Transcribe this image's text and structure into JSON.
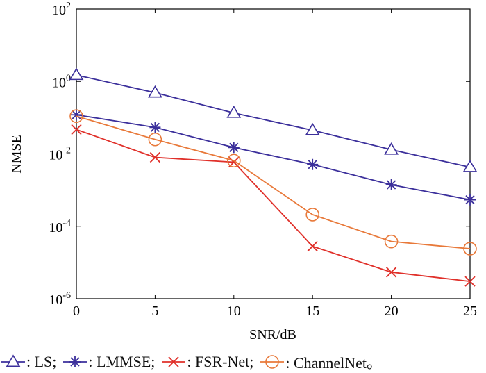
{
  "chart_data": {
    "type": "line",
    "title": "",
    "xlabel": "SNR/dB",
    "ylabel": "NMSE",
    "yscale": "log",
    "xlim": [
      0,
      25
    ],
    "ylim": [
      1e-06,
      100
    ],
    "x": [
      0,
      5,
      10,
      15,
      20,
      25
    ],
    "x_ticks": [
      "0",
      "5",
      "10",
      "15",
      "20",
      "25"
    ],
    "y_ticks": [
      {
        "base": "10",
        "exp": "2"
      },
      {
        "base": "10",
        "exp": "0"
      },
      {
        "base": "10",
        "exp": "-2"
      },
      {
        "base": "10",
        "exp": "-4"
      },
      {
        "base": "10",
        "exp": "-6"
      }
    ],
    "grid": false,
    "legend_position": "bottom",
    "series": [
      {
        "name": "LS",
        "legend_label": ": LS;",
        "marker": "triangle",
        "color": "#3b2f9b",
        "values": [
          1.5,
          0.49,
          0.135,
          0.045,
          0.013,
          0.0043
        ]
      },
      {
        "name": "LMMSE",
        "legend_label": ": LMMSE;",
        "marker": "asterisk",
        "color": "#3b2f9b",
        "values": [
          0.12,
          0.054,
          0.015,
          0.0051,
          0.0014,
          0.00054
        ]
      },
      {
        "name": "FSR-Net",
        "legend_label": ": FSR-Net;",
        "marker": "x",
        "color": "#e0302a",
        "values": [
          0.047,
          0.008,
          0.0059,
          2.8e-05,
          5.4e-06,
          3e-06
        ]
      },
      {
        "name": "ChannelNet",
        "legend_label": ": ChannelNet。",
        "marker": "circle",
        "color": "#e8793a",
        "values": [
          0.11,
          0.025,
          0.0065,
          0.00021,
          3.8e-05,
          2.4e-05
        ]
      }
    ]
  }
}
